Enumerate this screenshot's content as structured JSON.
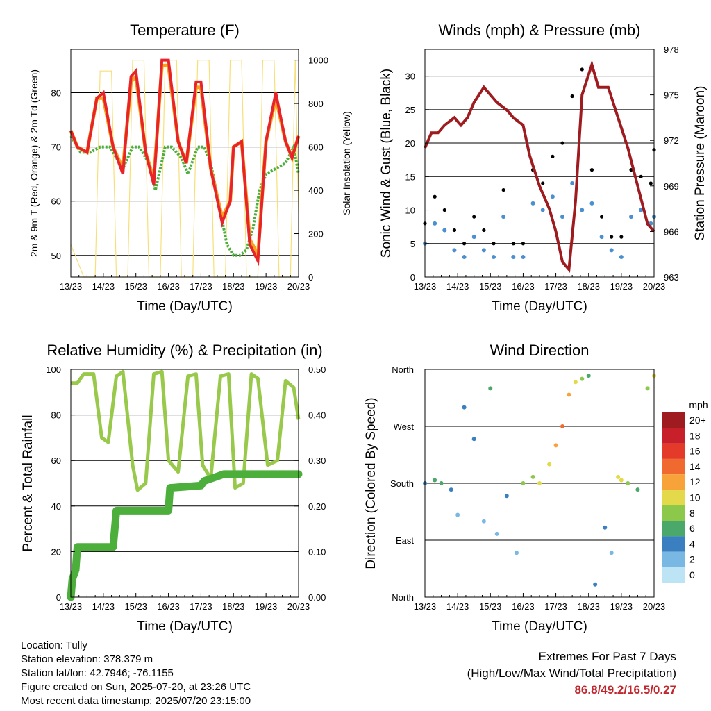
{
  "chart_data": [
    {
      "type": "line",
      "title": "Temperature (F)",
      "xlabel": "Time (Day/UTC)",
      "ylabel": "2m & 9m T (Red, Orange) & 2m Td (Green)",
      "ylabel_right": "Solar Insolation (Yellow)",
      "x_ticks": [
        "13/23",
        "14/23",
        "15/23",
        "16/23",
        "17/23",
        "18/23",
        "19/23",
        "20/23"
      ],
      "ylim": [
        46,
        88
      ],
      "y_ticks": [
        50,
        60,
        70,
        80
      ],
      "ylim_right": [
        0,
        1050
      ],
      "y_ticks_right": [
        0,
        200,
        400,
        600,
        800,
        1000
      ],
      "grid": true,
      "colors": {
        "temp_2m": "#e8242a",
        "temp_9m": "#f5a21c",
        "dewpoint": "#4caf3c",
        "solar": "#f7e07a"
      },
      "series": [
        {
          "name": "2m T",
          "axis": "left",
          "x": [
            0,
            0.2,
            0.5,
            0.8,
            1.0,
            1.3,
            1.6,
            1.85,
            2.0,
            2.3,
            2.55,
            2.8,
            3.0,
            3.3,
            3.55,
            3.85,
            4.0,
            4.3,
            4.65,
            4.9,
            5.0,
            5.25,
            5.5,
            5.75,
            6.0,
            6.3,
            6.6,
            6.8,
            7.0
          ],
          "values": [
            73,
            70,
            69,
            79,
            80,
            70,
            65,
            83,
            84,
            69,
            63,
            86,
            86,
            71,
            67,
            82,
            82,
            66,
            56,
            60,
            70,
            71,
            52,
            49,
            71,
            80,
            71,
            68,
            72
          ]
        },
        {
          "name": "9m T",
          "axis": "left",
          "x": [
            0,
            0.2,
            0.5,
            0.8,
            1.0,
            1.3,
            1.6,
            1.85,
            2.0,
            2.3,
            2.55,
            2.8,
            3.0,
            3.3,
            3.55,
            3.85,
            4.0,
            4.3,
            4.65,
            4.9,
            5.0,
            5.25,
            5.5,
            5.75,
            6.0,
            6.3,
            6.6,
            6.8,
            7.0
          ],
          "values": [
            73,
            70,
            69,
            79,
            79,
            70,
            66,
            82,
            83,
            69,
            64,
            85,
            85,
            71,
            67,
            81,
            81,
            66,
            57,
            60,
            70,
            71,
            53,
            50,
            71,
            79,
            71,
            68,
            72
          ]
        },
        {
          "name": "2m Td",
          "axis": "left",
          "x": [
            0,
            0.3,
            0.6,
            0.9,
            1.2,
            1.4,
            1.6,
            1.9,
            2.1,
            2.4,
            2.6,
            2.9,
            3.1,
            3.4,
            3.6,
            3.9,
            4.1,
            4.3,
            4.6,
            4.8,
            5.0,
            5.2,
            5.4,
            5.6,
            5.8,
            6.0,
            6.3,
            6.6,
            6.85,
            7.0
          ],
          "values": [
            72,
            69,
            69,
            70,
            70,
            68,
            66,
            70,
            70,
            67,
            62,
            70,
            70,
            68,
            65,
            70,
            70,
            67,
            58,
            52,
            50,
            50,
            51,
            55,
            62,
            65,
            66,
            67,
            70,
            65
          ]
        },
        {
          "name": "Solar",
          "axis": "right",
          "x": [
            0,
            0.4,
            0.75,
            0.9,
            1.25,
            1.4,
            1.75,
            1.9,
            2.25,
            2.4,
            2.75,
            2.9,
            3.25,
            3.4,
            3.75,
            3.9,
            4.25,
            4.4,
            4.75,
            4.9,
            5.25,
            5.4,
            5.75,
            5.9,
            6.25,
            6.4,
            6.75,
            6.9,
            7.0
          ],
          "values": [
            150,
            0,
            0,
            950,
            950,
            0,
            0,
            1000,
            1000,
            0,
            0,
            1000,
            1000,
            0,
            0,
            1000,
            1000,
            0,
            0,
            1000,
            1000,
            0,
            0,
            1000,
            1000,
            0,
            0,
            1000,
            300
          ]
        }
      ]
    },
    {
      "type": "scatter",
      "title": "Winds (mph) & Pressure (mb)",
      "xlabel": "Time (Day/UTC)",
      "ylabel": "Sonic Wind & Gust (Blue, Black)",
      "ylabel_right": "Station Pressure (Maroon)",
      "x_ticks": [
        "13/23",
        "14/23",
        "15/23",
        "16/23",
        "17/23",
        "18/23",
        "19/23",
        "20/23"
      ],
      "ylim": [
        0,
        34
      ],
      "y_ticks": [
        0,
        5,
        10,
        15,
        20,
        25,
        30
      ],
      "ylim_right": [
        963,
        978
      ],
      "y_ticks_right": [
        963,
        966,
        969,
        972,
        975,
        978
      ],
      "grid": true,
      "colors": {
        "wind": "#4a90d0",
        "gust": "#000000",
        "pressure": "#9e1b20"
      },
      "series": [
        {
          "name": "Sonic Wind",
          "axis": "left",
          "x": [
            0,
            0.3,
            0.6,
            0.9,
            1.2,
            1.5,
            1.8,
            2.1,
            2.4,
            2.7,
            3.0,
            3.3,
            3.6,
            3.9,
            4.2,
            4.5,
            4.8,
            5.1,
            5.4,
            5.7,
            6.0,
            6.3,
            6.6,
            6.9,
            7.0
          ],
          "values": [
            5,
            8,
            7,
            4,
            3,
            6,
            4,
            3,
            9,
            3,
            3,
            11,
            10,
            12,
            9,
            14,
            10,
            11,
            6,
            4,
            3,
            9,
            10,
            8,
            9
          ]
        },
        {
          "name": "Gust",
          "axis": "left",
          "x": [
            0,
            0.3,
            0.6,
            0.9,
            1.2,
            1.5,
            1.8,
            2.1,
            2.4,
            2.7,
            3.0,
            3.3,
            3.6,
            3.9,
            4.2,
            4.5,
            4.8,
            5.1,
            5.4,
            5.7,
            6.0,
            6.3,
            6.6,
            6.9,
            7.0
          ],
          "values": [
            8,
            12,
            10,
            7,
            5,
            9,
            7,
            5,
            13,
            5,
            5,
            16,
            14,
            18,
            20,
            27,
            31,
            16,
            9,
            6,
            6,
            16,
            15,
            14,
            19
          ]
        },
        {
          "name": "Pressure",
          "axis": "right",
          "x": [
            0,
            0.2,
            0.4,
            0.6,
            0.9,
            1.1,
            1.3,
            1.5,
            1.8,
            2.0,
            2.2,
            2.5,
            2.7,
            3.0,
            3.2,
            3.5,
            3.8,
            4.0,
            4.2,
            4.4,
            4.6,
            4.8,
            5.1,
            5.3,
            5.6,
            5.9,
            6.2,
            6.5,
            6.8,
            7.0
          ],
          "values": [
            971.5,
            972.5,
            972.5,
            973,
            973.5,
            973,
            973.5,
            974.5,
            975.5,
            975,
            974.5,
            974,
            973.5,
            973,
            971,
            969,
            967.5,
            966,
            964,
            963.5,
            968,
            975,
            977,
            975.5,
            975.5,
            973.5,
            971.5,
            969,
            966.5,
            966
          ]
        }
      ]
    },
    {
      "type": "line",
      "title": "Relative Humidity (%) & Precipitation (in)",
      "xlabel": "Time (Day/UTC)",
      "ylabel": "Percent & Total Rainfall",
      "x_ticks": [
        "13/23",
        "14/23",
        "15/23",
        "16/23",
        "17/23",
        "18/23",
        "19/23",
        "20/23"
      ],
      "ylim": [
        0,
        100
      ],
      "y_ticks": [
        0,
        20,
        40,
        60,
        80,
        100
      ],
      "ylim_right": [
        0,
        0.5
      ],
      "y_ticks_right": [
        "0.00",
        "0.10",
        "0.20",
        "0.30",
        "0.40",
        "0.50"
      ],
      "grid": true,
      "colors": {
        "rh": "#98c94a",
        "precip": "#4caf3c"
      },
      "series": [
        {
          "name": "RH",
          "axis": "left",
          "x": [
            0,
            0.2,
            0.4,
            0.7,
            0.95,
            1.15,
            1.4,
            1.6,
            1.9,
            2.05,
            2.3,
            2.55,
            2.8,
            3.0,
            3.3,
            3.6,
            3.85,
            4.05,
            4.3,
            4.6,
            4.85,
            5.05,
            5.3,
            5.55,
            5.75,
            6.05,
            6.35,
            6.6,
            6.85,
            7.0
          ],
          "values": [
            94,
            94,
            98,
            98,
            70,
            68,
            97,
            99,
            58,
            47,
            50,
            98,
            99,
            60,
            55,
            97,
            98,
            58,
            52,
            97,
            98,
            48,
            50,
            98,
            96,
            58,
            60,
            95,
            92,
            78
          ]
        },
        {
          "name": "Precip",
          "axis": "right",
          "x": [
            0,
            0.05,
            0.1,
            0.15,
            0.2,
            1.3,
            1.35,
            1.4,
            2.95,
            3.0,
            3.05,
            4.0,
            4.1,
            4.5,
            4.7,
            7.0
          ],
          "values": [
            0,
            0.04,
            0.05,
            0.06,
            0.11,
            0.11,
            0.15,
            0.19,
            0.19,
            0.19,
            0.24,
            0.245,
            0.255,
            0.265,
            0.27,
            0.27
          ]
        }
      ]
    },
    {
      "type": "scatter",
      "title": "Wind Direction",
      "xlabel": "Time (Day/UTC)",
      "ylabel": "Direction (Colored By Speed)",
      "x_ticks": [
        "13/23",
        "14/23",
        "15/23",
        "16/23",
        "17/23",
        "18/23",
        "19/23",
        "20/23"
      ],
      "y_ticks": [
        "North",
        "East",
        "South",
        "West",
        "North"
      ],
      "ylim": [
        0,
        360
      ],
      "grid": true,
      "legend_title": "mph",
      "legend_labels": [
        "20+",
        "18",
        "16",
        "14",
        "12",
        "10",
        "8",
        "6",
        "4",
        "2",
        "0"
      ],
      "legend_colors": [
        "#9e1b20",
        "#c8202a",
        "#e33a2a",
        "#f06a2f",
        "#f8a23a",
        "#e4d94a",
        "#8cc84a",
        "#4aa86a",
        "#3a80c0",
        "#7ab8e4",
        "#bde4f4"
      ],
      "series": [
        {
          "name": "Direction",
          "x": [
            0,
            0.3,
            0.5,
            0.8,
            1.0,
            1.2,
            1.5,
            1.8,
            2.0,
            2.2,
            2.5,
            2.8,
            3.0,
            3.3,
            3.5,
            3.8,
            4.0,
            4.2,
            4.4,
            4.6,
            4.8,
            5.0,
            5.2,
            5.5,
            5.7,
            5.9,
            6.0,
            6.2,
            6.5,
            6.8,
            7.0
          ],
          "values": [
            180,
            185,
            180,
            170,
            130,
            300,
            250,
            120,
            330,
            100,
            160,
            70,
            180,
            190,
            180,
            210,
            240,
            270,
            320,
            340,
            345,
            350,
            20,
            110,
            70,
            190,
            185,
            180,
            170,
            330,
            350
          ],
          "speeds": [
            4,
            5,
            6,
            3,
            2,
            4,
            3,
            2,
            5,
            2,
            3,
            2,
            7,
            8,
            9,
            10,
            12,
            14,
            11,
            9,
            8,
            6,
            3,
            4,
            2,
            9,
            10,
            8,
            6,
            7,
            9
          ]
        }
      ]
    }
  ],
  "footer": {
    "location": "Location: Tully",
    "elevation": "Station elevation: 378.379 m",
    "latlon": "Station lat/lon: 42.7946; -76.1155",
    "created": "Figure created on Sun, 2025-07-20, at 23:26 UTC",
    "latest": "Most recent data timestamp: 2025/07/20 23:15:00",
    "extremes_title": "Extremes For Past 7 Days",
    "extremes_subtitle": "(High/Low/Max Wind/Total Precipitation)",
    "extremes_value": "86.8/49.2/16.5/0.27"
  }
}
